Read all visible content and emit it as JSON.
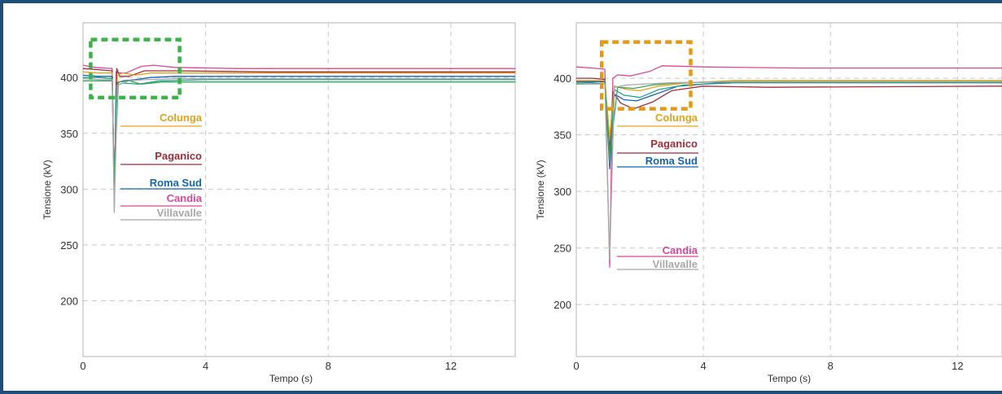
{
  "colors": {
    "frame": "#1f4e79",
    "Colunga": "#e3a21a",
    "Paganico": "#a12f3a",
    "Roma Sud": "#1565b5",
    "Candia": "#d9489a",
    "Villavalle": "#a8a8a8",
    "teal": "#2a9d8f",
    "green": "#3aa35a",
    "grid": "#c8c8c8",
    "box_left": "#3cb34a",
    "box_right": "#e39a1a"
  },
  "chart_data": [
    {
      "type": "line",
      "xlabel": "Tempo (s)",
      "ylabel": "Tensione (kV)",
      "xlim": [
        0,
        14.1
      ],
      "ylim": [
        150,
        449
      ],
      "xticks": [
        "0",
        "4",
        "8",
        "12"
      ],
      "yticks": [
        "200",
        "250",
        "300",
        "350",
        "400"
      ],
      "grid": true,
      "legend": [
        "Colunga",
        "Paganico",
        "Roma Sud",
        "Candia",
        "Villavalle"
      ],
      "highlight_box": {
        "x": [
          0.25,
          3.15
        ],
        "y": [
          382,
          434
        ],
        "style": "dashed",
        "color": "green"
      },
      "series": [
        {
          "name": "Candia",
          "color": "#d9489a",
          "x": [
            0,
            0.4,
            0.95,
            1.02,
            1.08,
            1.15,
            1.4,
            1.9,
            2.3,
            3,
            5,
            8,
            14.1
          ],
          "y": [
            411,
            409,
            408,
            283,
            405,
            404,
            404,
            410,
            411,
            409,
            408,
            408,
            408
          ]
        },
        {
          "name": "Paganico",
          "color": "#a12f3a",
          "x": [
            0,
            0.5,
            0.95,
            1.02,
            1.1,
            1.2,
            1.5,
            2,
            3,
            6,
            14.1
          ],
          "y": [
            408,
            407,
            406,
            292,
            408,
            401,
            401,
            406,
            406,
            405,
            405
          ]
        },
        {
          "name": "Colunga",
          "color": "#e3a21a",
          "x": [
            0,
            0.5,
            0.95,
            1.02,
            1.12,
            1.3,
            1.7,
            2.2,
            3,
            6,
            14.1
          ],
          "y": [
            405,
            404,
            404,
            300,
            402,
            404,
            402,
            404,
            404,
            404,
            404
          ]
        },
        {
          "name": "Roma Sud",
          "color": "#1565b5",
          "x": [
            0,
            0.5,
            0.95,
            1.02,
            1.1,
            1.3,
            1.7,
            2.2,
            3,
            6,
            14.1
          ],
          "y": [
            402,
            401,
            401,
            299,
            395,
            397,
            398,
            400,
            401,
            401,
            401
          ]
        },
        {
          "name": "",
          "color": "#2a9d8f",
          "x": [
            0,
            0.5,
            0.95,
            1.02,
            1.1,
            1.3,
            1.8,
            2.5,
            4,
            14.1
          ],
          "y": [
            400,
            400,
            399,
            298,
            393,
            395,
            394,
            397,
            398,
            398
          ]
        },
        {
          "name": "",
          "color": "#3aa35a",
          "x": [
            0,
            0.95,
            1.02,
            1.15,
            1.5,
            1.9,
            2.6,
            4,
            14.1
          ],
          "y": [
            397,
            397,
            305,
            396,
            397,
            394,
            396,
            396,
            396
          ]
        },
        {
          "name": "Villavalle",
          "color": "#a8a8a8",
          "x": [
            0,
            0.6,
            0.95,
            1.02,
            1.12,
            1.5,
            2,
            3,
            6,
            14.1
          ],
          "y": [
            399,
            398,
            398,
            279,
            393,
            397,
            398,
            399,
            399,
            399
          ]
        }
      ]
    },
    {
      "type": "line",
      "xlabel": "Tempo (s)",
      "ylabel": "Tensione (kV)",
      "xlim": [
        0,
        13.4
      ],
      "ylim": [
        154,
        449
      ],
      "xticks": [
        "0",
        "4",
        "8",
        "12"
      ],
      "yticks": [
        "200",
        "250",
        "300",
        "350",
        "400"
      ],
      "grid": true,
      "legend": [
        "Colunga",
        "Paganico",
        "Roma Sud",
        "Candia",
        "Villavalle"
      ],
      "highlight_box": {
        "x": [
          0.8,
          3.6
        ],
        "y": [
          373,
          432
        ],
        "style": "dashed",
        "color": "orange"
      },
      "series": [
        {
          "name": "Candia",
          "color": "#d9489a",
          "x": [
            0,
            0.5,
            0.9,
            1.05,
            1.15,
            1.3,
            1.7,
            2.3,
            2.7,
            4,
            7,
            13.4
          ],
          "y": [
            410,
            409,
            408,
            233,
            400,
            403,
            402,
            406,
            411,
            410,
            409,
            409
          ]
        },
        {
          "name": "Paganico",
          "color": "#a12f3a",
          "x": [
            0,
            0.5,
            0.9,
            1.05,
            1.15,
            1.4,
            1.8,
            2.4,
            3,
            4,
            6,
            13.4
          ],
          "y": [
            400,
            400,
            399,
            335,
            388,
            378,
            373,
            379,
            389,
            393,
            392,
            393
          ]
        },
        {
          "name": "Colunga",
          "color": "#e3a21a",
          "x": [
            0,
            0.5,
            0.9,
            1.05,
            1.2,
            1.6,
            2,
            2.6,
            3.5,
            5,
            13.4
          ],
          "y": [
            398,
            398,
            398,
            348,
            393,
            390,
            389,
            393,
            396,
            398,
            398
          ]
        },
        {
          "name": "Roma Sud",
          "color": "#1565b5",
          "x": [
            0,
            0.5,
            0.9,
            1.05,
            1.2,
            1.5,
            1.9,
            2.5,
            3.2,
            5,
            13.4
          ],
          "y": [
            397,
            397,
            397,
            320,
            386,
            381,
            380,
            386,
            393,
            397,
            397
          ]
        },
        {
          "name": "",
          "color": "#2a9d8f",
          "x": [
            0,
            0.5,
            0.9,
            1.05,
            1.2,
            1.5,
            2,
            2.6,
            3.4,
            5,
            13.4
          ],
          "y": [
            396,
            396,
            395,
            325,
            390,
            385,
            383,
            390,
            394,
            396,
            396
          ]
        },
        {
          "name": "",
          "color": "#3aa35a",
          "x": [
            0,
            0.9,
            1.05,
            1.3,
            1.8,
            2.4,
            3.2,
            5,
            13.4
          ],
          "y": [
            395,
            395,
            330,
            392,
            391,
            394,
            396,
            397,
            397
          ]
        },
        {
          "name": "Villavalle",
          "color": "#a8a8a8",
          "x": [
            0,
            0.5,
            0.9,
            1.05,
            1.2,
            1.6,
            2.2,
            3,
            5,
            13.4
          ],
          "y": [
            396,
            395,
            395,
            240,
            392,
            394,
            395,
            396,
            397,
            397
          ]
        }
      ]
    }
  ]
}
